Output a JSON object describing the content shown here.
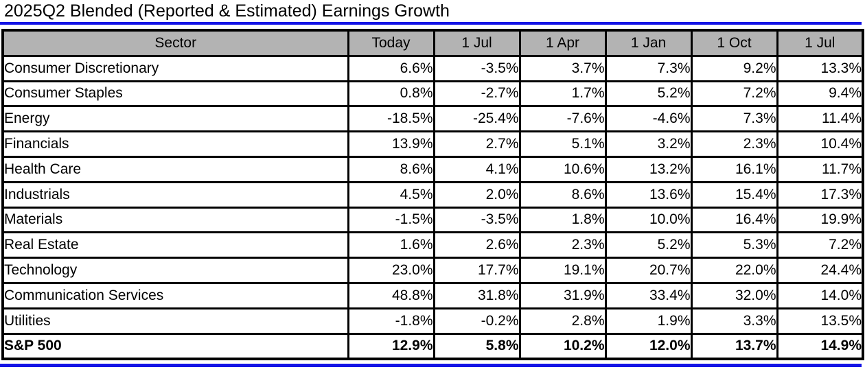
{
  "title": "2025Q2 Blended (Reported & Estimated) Earnings Growth",
  "colors": {
    "accent_blue": "#1414e6",
    "header_gray": "#b3b3b3",
    "border_black": "#000000"
  },
  "table": {
    "columns": [
      "Sector",
      "Today",
      "1 Jul",
      "1 Apr",
      "1 Jan",
      "1 Oct",
      "1 Jul"
    ],
    "rows": [
      {
        "sector": "Consumer Discretionary",
        "values": [
          "6.6%",
          "-3.5%",
          "3.7%",
          "7.3%",
          "9.2%",
          "13.3%"
        ],
        "bold": false
      },
      {
        "sector": "Consumer Staples",
        "values": [
          "0.8%",
          "-2.7%",
          "1.7%",
          "5.2%",
          "7.2%",
          "9.4%"
        ],
        "bold": false
      },
      {
        "sector": "Energy",
        "values": [
          "-18.5%",
          "-25.4%",
          "-7.6%",
          "-4.6%",
          "7.3%",
          "11.4%"
        ],
        "bold": false
      },
      {
        "sector": "Financials",
        "values": [
          "13.9%",
          "2.7%",
          "5.1%",
          "3.2%",
          "2.3%",
          "10.4%"
        ],
        "bold": false
      },
      {
        "sector": "Health Care",
        "values": [
          "8.6%",
          "4.1%",
          "10.6%",
          "13.2%",
          "16.1%",
          "11.7%"
        ],
        "bold": false
      },
      {
        "sector": "Industrials",
        "values": [
          "4.5%",
          "2.0%",
          "8.6%",
          "13.6%",
          "15.4%",
          "17.3%"
        ],
        "bold": false
      },
      {
        "sector": "Materials",
        "values": [
          "-1.5%",
          "-3.5%",
          "1.8%",
          "10.0%",
          "16.4%",
          "19.9%"
        ],
        "bold": false
      },
      {
        "sector": "Real Estate",
        "values": [
          "1.6%",
          "2.6%",
          "2.3%",
          "5.2%",
          "5.3%",
          "7.2%"
        ],
        "bold": false
      },
      {
        "sector": "Technology",
        "values": [
          "23.0%",
          "17.7%",
          "19.1%",
          "20.7%",
          "22.0%",
          "24.4%"
        ],
        "bold": false
      },
      {
        "sector": "Communication Services",
        "values": [
          "48.8%",
          "31.8%",
          "31.9%",
          "33.4%",
          "32.0%",
          "14.0%"
        ],
        "bold": false
      },
      {
        "sector": "Utilities",
        "values": [
          "-1.8%",
          "-0.2%",
          "2.8%",
          "1.9%",
          "3.3%",
          "13.5%"
        ],
        "bold": false
      },
      {
        "sector": "S&P 500",
        "values": [
          "12.9%",
          "5.8%",
          "10.2%",
          "12.0%",
          "13.7%",
          "14.9%"
        ],
        "bold": true
      }
    ]
  },
  "chart_data": {
    "type": "table",
    "title": "2025Q2 Blended (Reported & Estimated) Earnings Growth",
    "columns": [
      "Sector",
      "Today",
      "1 Jul",
      "1 Apr",
      "1 Jan",
      "1 Oct",
      "1 Jul"
    ],
    "categories": [
      "Consumer Discretionary",
      "Consumer Staples",
      "Energy",
      "Financials",
      "Health Care",
      "Industrials",
      "Materials",
      "Real Estate",
      "Technology",
      "Communication Services",
      "Utilities",
      "S&P 500"
    ],
    "series": [
      {
        "name": "Today",
        "values": [
          6.6,
          0.8,
          -18.5,
          13.9,
          8.6,
          4.5,
          -1.5,
          1.6,
          23.0,
          48.8,
          -1.8,
          12.9
        ]
      },
      {
        "name": "1 Jul",
        "values": [
          -3.5,
          -2.7,
          -25.4,
          2.7,
          4.1,
          2.0,
          -3.5,
          2.6,
          17.7,
          31.8,
          -0.2,
          5.8
        ]
      },
      {
        "name": "1 Apr",
        "values": [
          3.7,
          1.7,
          -7.6,
          5.1,
          10.6,
          8.6,
          1.8,
          2.3,
          19.1,
          31.9,
          2.8,
          10.2
        ]
      },
      {
        "name": "1 Jan",
        "values": [
          7.3,
          5.2,
          -4.6,
          3.2,
          13.2,
          13.6,
          10.0,
          5.2,
          20.7,
          33.4,
          1.9,
          12.0
        ]
      },
      {
        "name": "1 Oct",
        "values": [
          9.2,
          7.2,
          7.3,
          2.3,
          16.1,
          15.4,
          16.4,
          5.3,
          22.0,
          32.0,
          3.3,
          13.7
        ]
      },
      {
        "name": "1 Jul (prior)",
        "values": [
          13.3,
          9.4,
          11.4,
          10.4,
          11.7,
          17.3,
          19.9,
          7.2,
          24.4,
          14.0,
          13.5,
          14.9
        ]
      }
    ],
    "unit": "%"
  }
}
